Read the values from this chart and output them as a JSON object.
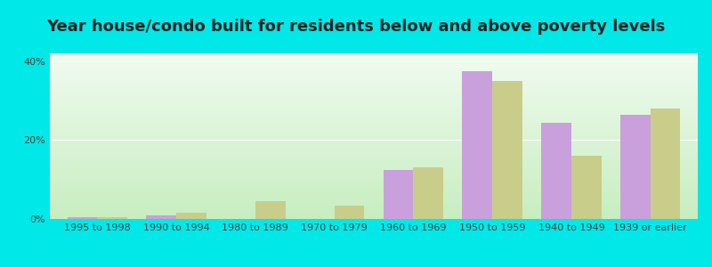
{
  "title": "Year house/condo built for residents below and above poverty levels",
  "categories": [
    "1995 to 1998",
    "1990 to 1994",
    "1980 to 1989",
    "1970 to 1979",
    "1960 to 1969",
    "1950 to 1959",
    "1940 to 1949",
    "1939 or earlier"
  ],
  "below_poverty": [
    0.5,
    1.0,
    0.0,
    0.0,
    12.5,
    37.5,
    24.5,
    26.5
  ],
  "above_poverty": [
    0.5,
    1.5,
    4.5,
    3.5,
    13.0,
    35.0,
    16.0,
    28.0
  ],
  "below_color": "#c9a0dc",
  "above_color": "#c8cd8a",
  "outer_background": "#00e8e8",
  "ylim": [
    0,
    42
  ],
  "yticks": [
    0,
    20,
    40
  ],
  "ytick_labels": [
    "0%",
    "20%",
    "40%"
  ],
  "bar_width": 0.38,
  "title_fontsize": 13,
  "tick_fontsize": 8,
  "legend_fontsize": 9,
  "grad_top": "#f0fbf0",
  "grad_bottom": "#c8eec0"
}
